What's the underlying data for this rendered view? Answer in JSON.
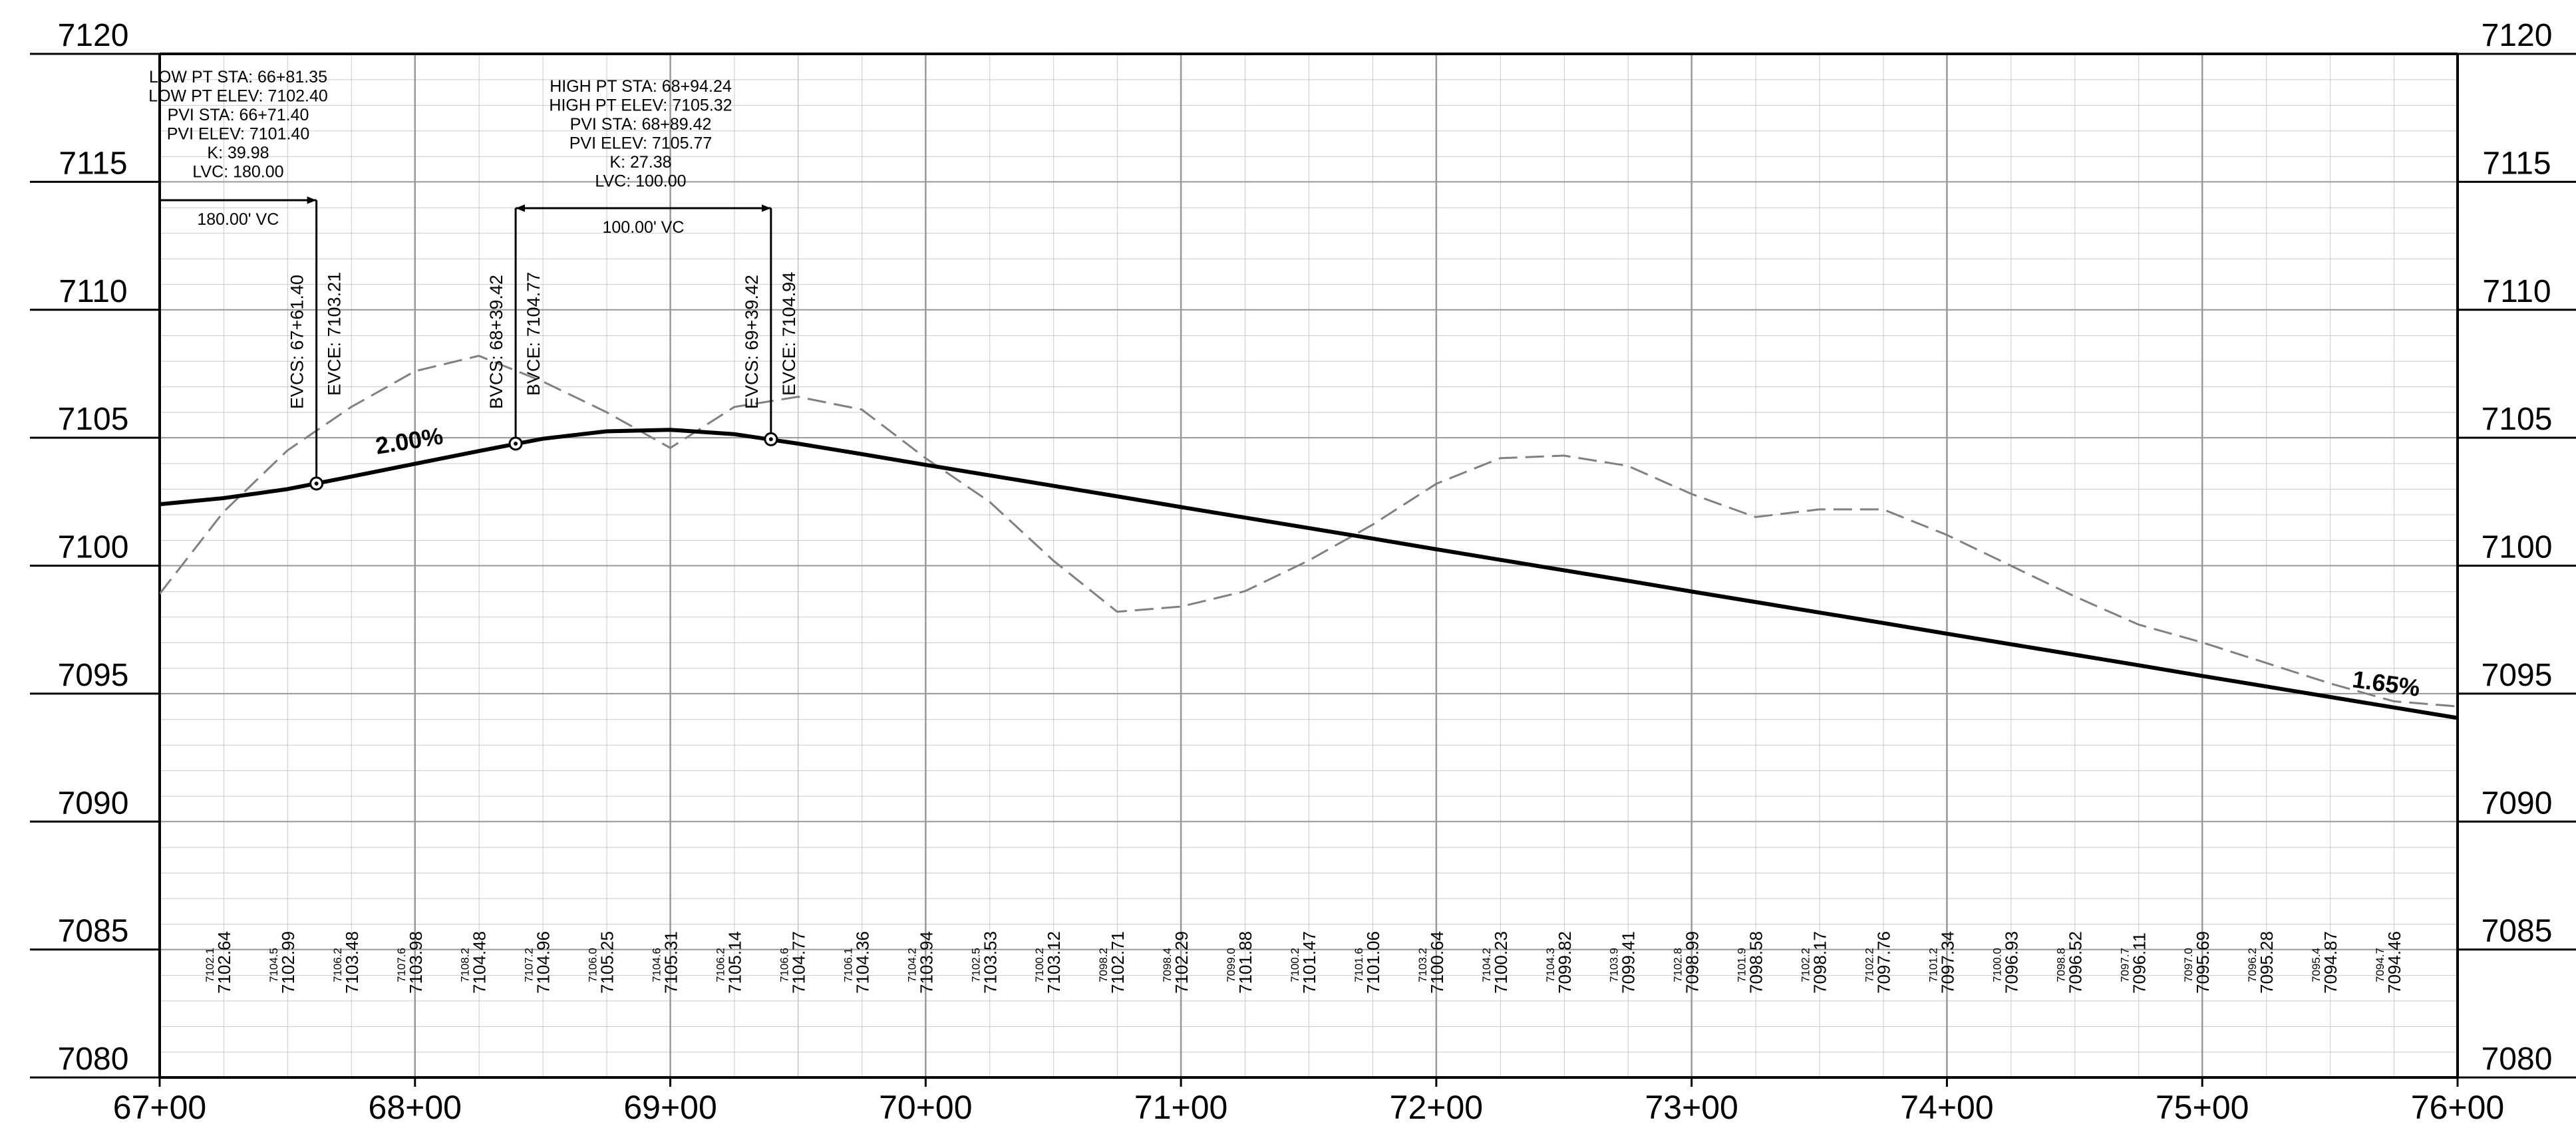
{
  "chart_data": {
    "type": "line",
    "x": [
      6700,
      6725,
      6750,
      6775,
      6800,
      6825,
      6850,
      6875,
      6900,
      6925,
      6950,
      6975,
      7000,
      7025,
      7050,
      7075,
      7100,
      7125,
      7150,
      7175,
      7200,
      7225,
      7250,
      7275,
      7300,
      7325,
      7350,
      7375,
      7400,
      7425,
      7450,
      7475,
      7500,
      7525,
      7550,
      7575,
      7600
    ],
    "series": [
      {
        "style": "dashed",
        "color": "#808080",
        "values": [
          7098.9,
          7102.1,
          7104.5,
          7106.2,
          7107.6,
          7108.2,
          7107.2,
          7106.0,
          7104.6,
          7106.2,
          7106.6,
          7106.1,
          7104.2,
          7102.5,
          7100.2,
          7098.2,
          7098.4,
          7099.0,
          7100.2,
          7101.6,
          7103.2,
          7104.2,
          7104.3,
          7103.9,
          7102.8,
          7101.9,
          7102.2,
          7102.2,
          7101.2,
          7100.0,
          7098.8,
          7097.7,
          7097.0,
          7096.2,
          7095.4,
          7094.7,
          7094.5
        ],
        "value_labels": [
          null,
          "7102.1",
          "7104.5",
          "7106.2",
          "7107.6",
          "7108.2",
          "7107.2",
          "7106.0",
          "7104.6",
          "7106.2",
          "7106.6",
          "7106.1",
          "7104.2",
          "7102.5",
          "7100.2",
          "7098.2",
          "7098.4",
          "7099.0",
          "7100.2",
          "7101.6",
          "7103.2",
          "7104.2",
          "7104.3",
          "7103.9",
          "7102.8",
          "7101.9",
          "7102.2",
          "7102.2",
          "7101.2",
          "7100.0",
          "7098.8",
          "7097.7",
          "7097.0",
          "7096.2",
          "7095.4",
          "7094.7",
          null
        ]
      },
      {
        "style": "solid",
        "color": "#000000",
        "values": [
          7102.4,
          7102.64,
          7102.99,
          7103.48,
          7103.98,
          7104.48,
          7104.96,
          7105.25,
          7105.31,
          7105.14,
          7104.77,
          7104.36,
          7103.94,
          7103.53,
          7103.12,
          7102.71,
          7102.29,
          7101.88,
          7101.47,
          7101.06,
          7100.64,
          7100.23,
          7099.82,
          7099.41,
          7098.99,
          7098.58,
          7098.17,
          7097.76,
          7097.34,
          7096.93,
          7096.52,
          7096.11,
          7095.69,
          7095.28,
          7094.87,
          7094.46,
          7094.05
        ],
        "value_labels": [
          null,
          "7102.64",
          "7102.99",
          "7103.48",
          "7103.98",
          "7104.48",
          "7104.96",
          "7105.25",
          "7105.31",
          "7105.14",
          "7104.77",
          "7104.36",
          "7103.94",
          "7103.53",
          "7103.12",
          "7102.71",
          "7102.29",
          "7101.88",
          "7101.47",
          "7101.06",
          "7100.64",
          "7100.23",
          "7099.82",
          "7099.41",
          "7098.99",
          "7098.58",
          "7098.17",
          "7097.76",
          "7097.34",
          "7096.93",
          "7096.52",
          "7096.11",
          "7095.69",
          "7095.28",
          "7094.87",
          "7094.46",
          null
        ]
      }
    ],
    "xlim": [
      6700,
      7600
    ],
    "xticks": [
      {
        "value": 6700,
        "label": "67+00"
      },
      {
        "value": 6800,
        "label": "68+00"
      },
      {
        "value": 6900,
        "label": "69+00"
      },
      {
        "value": 7000,
        "label": "70+00"
      },
      {
        "value": 7100,
        "label": "71+00"
      },
      {
        "value": 7200,
        "label": "72+00"
      },
      {
        "value": 7300,
        "label": "73+00"
      },
      {
        "value": 7400,
        "label": "74+00"
      },
      {
        "value": 7500,
        "label": "75+00"
      },
      {
        "value": 7600,
        "label": "76+00"
      }
    ],
    "ylim": [
      7080,
      7120
    ],
    "yticks": [
      7080,
      7085,
      7090,
      7095,
      7100,
      7105,
      7110,
      7115,
      7120
    ],
    "grid": true,
    "grade_labels": [
      "2.00%",
      "1.65%"
    ],
    "vertical_curves": [
      {
        "info": [
          "LOW PT STA:  66+81.35",
          "LOW PT ELEV:  7102.40",
          "PVI STA: 66+71.40",
          "PVI ELEV: 7101.40",
          "K: 39.98",
          "LVC: 180.00"
        ],
        "vc_label": "180.00'  VC",
        "points": [
          {
            "station": 6761.4,
            "elev": 7103.21,
            "sta_label": "EVCS:  67+61.40",
            "elev_label": "EVCE:  7103.21"
          }
        ]
      },
      {
        "info": [
          "HIGH PT STA:  68+94.24",
          "HIGH PT ELEV:  7105.32",
          "PVI STA: 68+89.42",
          "PVI ELEV: 7105.77",
          "K: 27.38",
          "LVC: 100.00"
        ],
        "vc_label": "100.00'  VC",
        "points": [
          {
            "station": 6839.42,
            "elev": 7104.77,
            "sta_label": "BVCS:  68+39.42",
            "elev_label": "BVCE:  7104.77"
          },
          {
            "station": 6939.42,
            "elev": 7104.94,
            "sta_label": "EVCS:  69+39.42",
            "elev_label": "EVCE:  7104.94"
          }
        ]
      }
    ]
  }
}
